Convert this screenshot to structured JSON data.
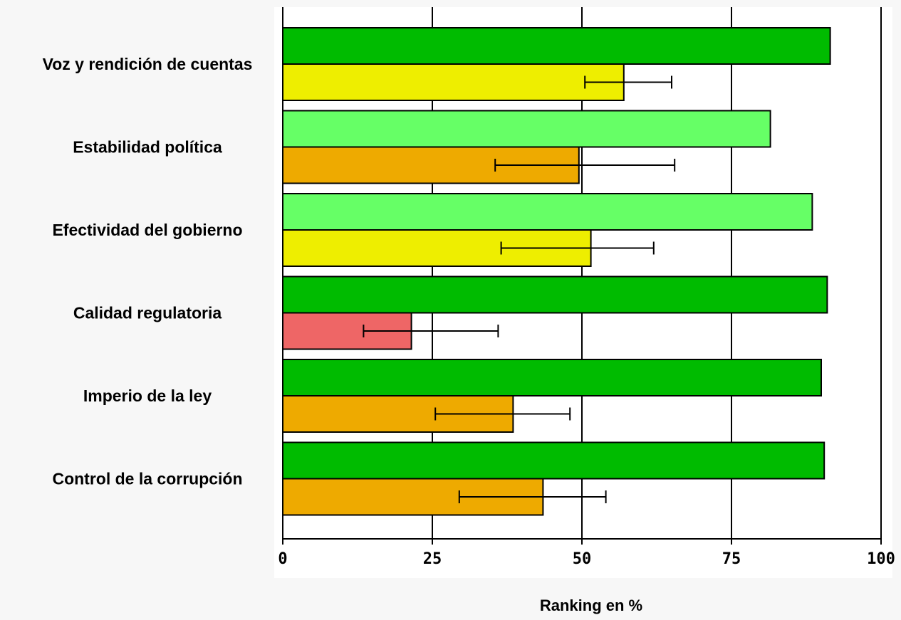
{
  "chart_data": {
    "type": "bar",
    "orientation": "horizontal",
    "categories": [
      "Voz y rendición de cuentas",
      "Estabilidad política",
      "Efectividad del gobierno",
      "Calidad regulatoria",
      "Imperio de la ley",
      "Control de la corrupción"
    ],
    "series": [
      {
        "values": [
          91.5,
          81.5,
          88.5,
          91,
          90,
          90.5
        ],
        "colors": [
          "#00bb00",
          "#66ff66",
          "#66ff66",
          "#00bb00",
          "#00bb00",
          "#00bb00"
        ]
      },
      {
        "values": [
          57,
          49.5,
          51.5,
          21.5,
          38.5,
          43.5
        ],
        "error_low": [
          50.5,
          35.5,
          36.5,
          13.5,
          25.5,
          29.5
        ],
        "error_high": [
          65,
          65.5,
          62,
          36,
          48,
          54
        ],
        "colors": [
          "#eeee00",
          "#eeaa00",
          "#eeee00",
          "#ee6666",
          "#eeaa00",
          "#eeaa00"
        ]
      }
    ],
    "xlim": [
      0,
      100
    ],
    "xticks": [
      "0",
      "25",
      "50",
      "75",
      "100"
    ],
    "xlabel": "Ranking en %",
    "grid": true
  }
}
